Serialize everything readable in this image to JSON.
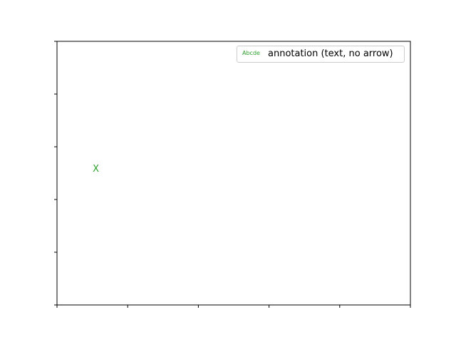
{
  "chart_data": {
    "type": "scatter",
    "title": "",
    "xlabel": "",
    "ylabel": "",
    "xlim": [
      0,
      1
    ],
    "ylim": [
      0,
      1
    ],
    "grid": false,
    "x_tick_values": [
      0,
      0.2,
      0.4,
      0.6,
      0.8,
      1.0
    ],
    "y_tick_values": [
      0,
      0.2,
      0.4,
      0.6,
      0.8,
      1.0
    ],
    "tick_labels_visible": false,
    "annotations": [
      {
        "text": "X",
        "x": 0.11,
        "y": 0.515,
        "color": "#2ca02c",
        "arrow": false
      }
    ],
    "legend": {
      "placement": "upper-right",
      "entries": [
        {
          "handle_text": "Abcde",
          "label": "annotation (text, no arrow)",
          "color": "#2ca02c"
        }
      ]
    }
  }
}
